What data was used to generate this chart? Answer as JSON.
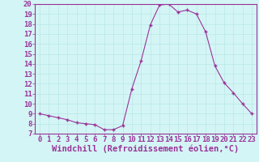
{
  "x": [
    0,
    1,
    2,
    3,
    4,
    5,
    6,
    7,
    8,
    9,
    10,
    11,
    12,
    13,
    14,
    15,
    16,
    17,
    18,
    19,
    20,
    21,
    22,
    23
  ],
  "y": [
    9.0,
    8.8,
    8.6,
    8.4,
    8.1,
    8.0,
    7.9,
    7.4,
    7.4,
    7.8,
    11.5,
    14.3,
    17.9,
    19.9,
    20.0,
    19.2,
    19.4,
    19.0,
    17.2,
    13.8,
    12.1,
    11.1,
    10.0,
    9.0
  ],
  "xlabel": "Windchill (Refroidissement éolien,°C)",
  "ylim": [
    7,
    20
  ],
  "xlim": [
    -0.5,
    23.5
  ],
  "yticks": [
    7,
    8,
    9,
    10,
    11,
    12,
    13,
    14,
    15,
    16,
    17,
    18,
    19,
    20
  ],
  "xticks": [
    0,
    1,
    2,
    3,
    4,
    5,
    6,
    7,
    8,
    9,
    10,
    11,
    12,
    13,
    14,
    15,
    16,
    17,
    18,
    19,
    20,
    21,
    22,
    23
  ],
  "line_color": "#993399",
  "marker_color": "#993399",
  "bg_color": "#d4f5f5",
  "grid_color": "#b8e8e8",
  "tick_label_color": "#993399",
  "xlabel_color": "#993399",
  "font_size": 6.5,
  "xlabel_font_size": 7.5
}
